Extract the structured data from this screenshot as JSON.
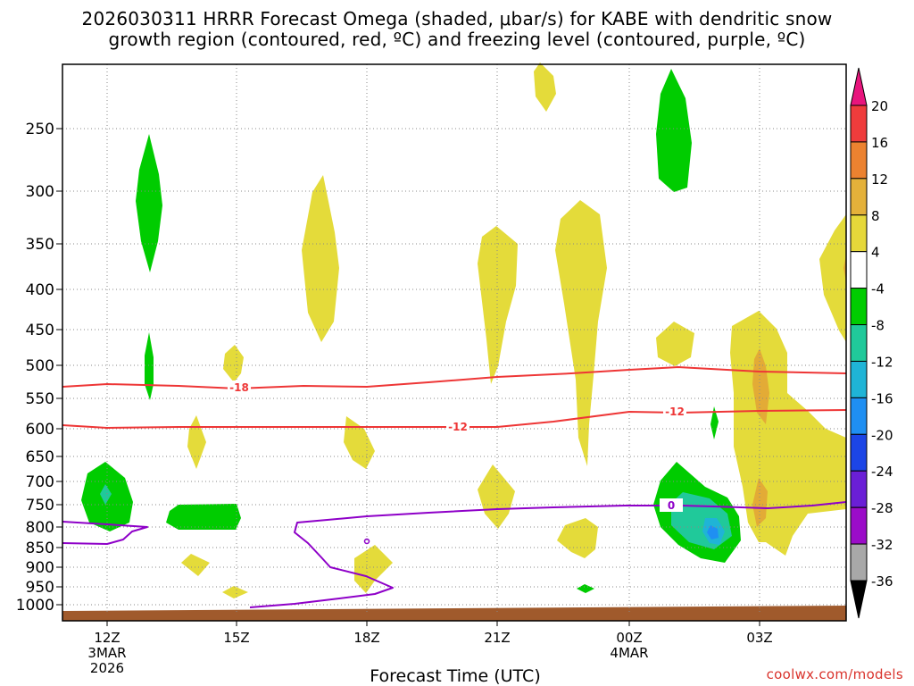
{
  "chart_data": {
    "type": "time-height cross section",
    "title_line1": "2026030311 HRRR Forecast Omega (shaded, μbar/s) for KABE with dendritic snow",
    "title_line2": "growth region (contoured, red, ºC) and freezing level (contoured, purple, ºC)",
    "xlabel": "Forecast Time (UTC)",
    "x_ticks": [
      {
        "label": "12Z",
        "sub": [
          "3MAR",
          "2026"
        ],
        "hour": 12
      },
      {
        "label": "15Z",
        "sub": [],
        "hour": 15
      },
      {
        "label": "18Z",
        "sub": [],
        "hour": 18
      },
      {
        "label": "21Z",
        "sub": [],
        "hour": 21
      },
      {
        "label": "00Z",
        "sub": [
          "4MAR"
        ],
        "hour": 24
      },
      {
        "label": "03Z",
        "sub": [],
        "hour": 27
      }
    ],
    "y_unit": "hPa",
    "y_ticks": [
      "250",
      "300",
      "350",
      "400",
      "450",
      "500",
      "550",
      "600",
      "650",
      "700",
      "750",
      "800",
      "850",
      "900",
      "950",
      "1000"
    ],
    "colorbar_labels": [
      "20",
      "16",
      "12",
      "8",
      "4",
      "-4",
      "-8",
      "-12",
      "-16",
      "-20",
      "-24",
      "-28",
      "-32",
      "-36"
    ],
    "contour_labels": {
      "dgz_top": "-18",
      "dgz_bottom": "-12",
      "freezing": "0"
    },
    "colors": {
      "pos_4_8": "#e4db3a",
      "pos_8_12": "#e3ab36",
      "neg_4_8": "#00cc00",
      "neg_8_12": "#20c99a",
      "neg_12_16": "#1fb4d6",
      "neg_16_20": "#1f8ff2",
      "red_contour": "#ee3636",
      "purple_contour": "#8e00c8",
      "ground": "#a05a2c"
    }
  },
  "credit": "coolwx.com/models"
}
